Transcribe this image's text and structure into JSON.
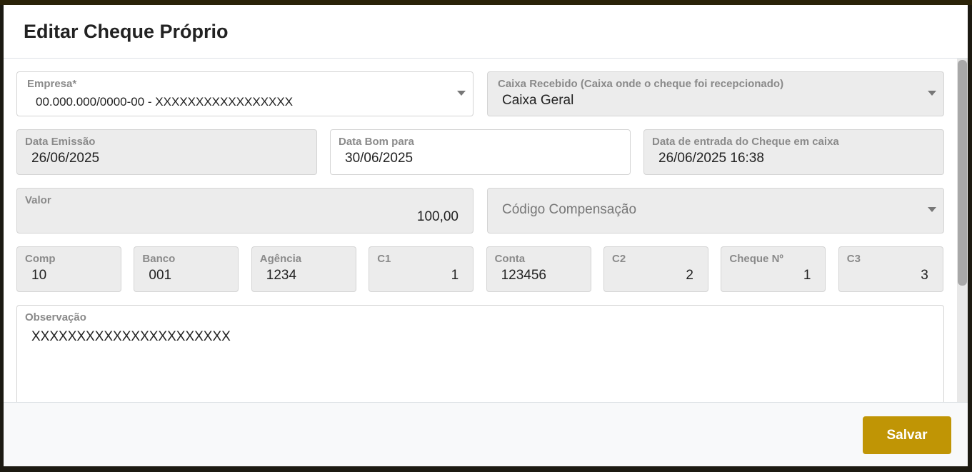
{
  "title": "Editar Cheque Próprio",
  "fields": {
    "empresa": {
      "label": "Empresa*",
      "value": "00.000.000/0000-00 - XXXXXXXXXXXXXXXXX"
    },
    "caixa": {
      "label": "Caixa Recebido (Caixa onde o cheque foi recepcionado)",
      "value": "Caixa Geral"
    },
    "data_emissao": {
      "label": "Data Emissão",
      "value": "26/06/2025"
    },
    "data_bom": {
      "label": "Data Bom para",
      "value": "30/06/2025"
    },
    "data_entrada": {
      "label": "Data de entrada do Cheque em caixa",
      "value": "26/06/2025 16:38"
    },
    "valor": {
      "label": "Valor",
      "value": "100,00"
    },
    "codigo": {
      "placeholder": "Código Compensação"
    },
    "small": [
      {
        "label": "Comp",
        "value": "10"
      },
      {
        "label": "Banco",
        "value": "001"
      },
      {
        "label": "Agência",
        "value": "1234"
      },
      {
        "label": "C1",
        "value": "1"
      },
      {
        "label": "Conta",
        "value": "123456"
      },
      {
        "label": "C2",
        "value": "2"
      },
      {
        "label": "Cheque Nº",
        "value": "1"
      },
      {
        "label": "C3",
        "value": "3"
      }
    ],
    "observacao": {
      "label": "Observação",
      "value": "XXXXXXXXXXXXXXXXXXXXXX"
    }
  },
  "footer": {
    "save_label": "Salvar"
  },
  "colors": {
    "accent": "#c09505"
  }
}
